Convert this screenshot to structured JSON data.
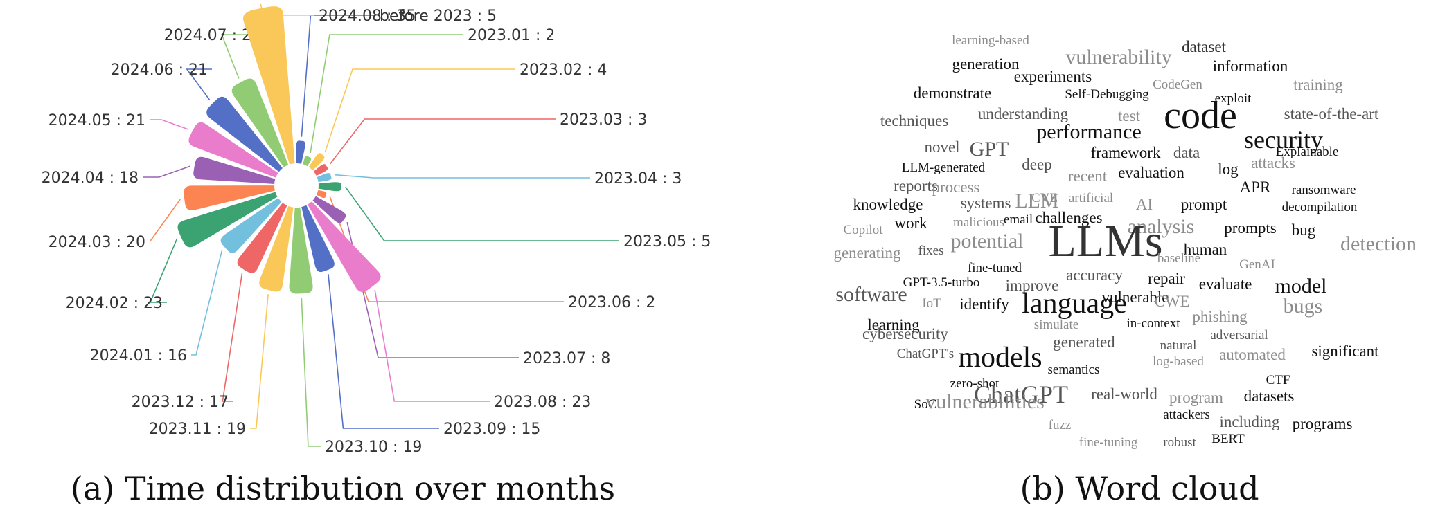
{
  "captions": {
    "a": "(a) Time distribution over months",
    "b": "(b) Word cloud"
  },
  "chart_data": [
    {
      "type": "bar",
      "variant": "nightingale-rose",
      "title": "",
      "label_separator": " : ",
      "categories": [
        "before 2023",
        "2023.01",
        "2023.02",
        "2023.03",
        "2023.04",
        "2023.05",
        "2023.06",
        "2023.07",
        "2023.08",
        "2023.09",
        "2023.10",
        "2023.11",
        "2023.12",
        "2024.01",
        "2024.02",
        "2024.03",
        "2024.04",
        "2024.05",
        "2024.06",
        "2024.07",
        "2024.08"
      ],
      "values": [
        5,
        2,
        4,
        3,
        3,
        5,
        2,
        8,
        23,
        15,
        19,
        19,
        17,
        16,
        23,
        20,
        18,
        21,
        21,
        21,
        35
      ],
      "colors": [
        "#5470c6",
        "#91cc75",
        "#fac858",
        "#ee6666",
        "#73c0de",
        "#3ba272",
        "#fc8452",
        "#9a60b4",
        "#ea7ccc",
        "#5470c6",
        "#91cc75",
        "#fac858",
        "#ee6666",
        "#73c0de",
        "#3ba272",
        "#fc8452",
        "#9a60b4",
        "#ea7ccc",
        "#5470c6",
        "#91cc75",
        "#fac858"
      ]
    },
    {
      "type": "word_cloud",
      "words": [
        {
          "text": "learning-based",
          "weight": 1,
          "color": "#8c8c8c"
        },
        {
          "text": "vulnerability",
          "weight": 3,
          "color": "#8c8c8c"
        },
        {
          "text": "dataset",
          "weight": 2,
          "color": "#333333"
        },
        {
          "text": "generation",
          "weight": 2,
          "color": "#111111"
        },
        {
          "text": "experiments",
          "weight": 2,
          "color": "#111111"
        },
        {
          "text": "information",
          "weight": 2,
          "color": "#111111"
        },
        {
          "text": "demonstrate",
          "weight": 2,
          "color": "#111111"
        },
        {
          "text": "Self-Debugging",
          "weight": 1,
          "color": "#111111"
        },
        {
          "text": "CodeGen",
          "weight": 1,
          "color": "#8c8c8c"
        },
        {
          "text": "exploit",
          "weight": 1,
          "color": "#111111"
        },
        {
          "text": "training",
          "weight": 2,
          "color": "#8c8c8c"
        },
        {
          "text": "techniques",
          "weight": 2,
          "color": "#555555"
        },
        {
          "text": "understanding",
          "weight": 2,
          "color": "#555555"
        },
        {
          "text": "test",
          "weight": 2,
          "color": "#8c8c8c"
        },
        {
          "text": "code",
          "weight": 6,
          "color": "#111111"
        },
        {
          "text": "state-of-the-art",
          "weight": 2,
          "color": "#555555"
        },
        {
          "text": "performance",
          "weight": 3,
          "color": "#111111"
        },
        {
          "text": "security",
          "weight": 4,
          "color": "#111111"
        },
        {
          "text": "novel",
          "weight": 2,
          "color": "#555555"
        },
        {
          "text": "GPT",
          "weight": 3,
          "color": "#555555"
        },
        {
          "text": "framework",
          "weight": 2,
          "color": "#111111"
        },
        {
          "text": "data",
          "weight": 2,
          "color": "#555555"
        },
        {
          "text": "Explainable",
          "weight": 1,
          "color": "#111111"
        },
        {
          "text": "LLM-generated",
          "weight": 1,
          "color": "#111111"
        },
        {
          "text": "deep",
          "weight": 2,
          "color": "#555555"
        },
        {
          "text": "recent",
          "weight": 2,
          "color": "#8c8c8c"
        },
        {
          "text": "evaluation",
          "weight": 2,
          "color": "#111111"
        },
        {
          "text": "log",
          "weight": 2,
          "color": "#111111"
        },
        {
          "text": "attacks",
          "weight": 2,
          "color": "#8c8c8c"
        },
        {
          "text": "reports",
          "weight": 2,
          "color": "#555555"
        },
        {
          "text": "process",
          "weight": 2,
          "color": "#8c8c8c"
        },
        {
          "text": "CVE",
          "weight": 1,
          "color": "#8c8c8c"
        },
        {
          "text": "artificial",
          "weight": 1,
          "color": "#8c8c8c"
        },
        {
          "text": "APR",
          "weight": 2,
          "color": "#111111"
        },
        {
          "text": "ransomware",
          "weight": 1,
          "color": "#111111"
        },
        {
          "text": "knowledge",
          "weight": 2,
          "color": "#111111"
        },
        {
          "text": "systems",
          "weight": 2,
          "color": "#555555"
        },
        {
          "text": "LLM",
          "weight": 3,
          "color": "#8c8c8c"
        },
        {
          "text": "AI",
          "weight": 2,
          "color": "#8c8c8c"
        },
        {
          "text": "prompt",
          "weight": 2,
          "color": "#111111"
        },
        {
          "text": "decompilation",
          "weight": 1,
          "color": "#111111"
        },
        {
          "text": "Copilot",
          "weight": 1,
          "color": "#8c8c8c"
        },
        {
          "text": "work",
          "weight": 2,
          "color": "#111111"
        },
        {
          "text": "malicious",
          "weight": 1,
          "color": "#8c8c8c"
        },
        {
          "text": "email",
          "weight": 1,
          "color": "#111111"
        },
        {
          "text": "challenges",
          "weight": 2,
          "color": "#111111"
        },
        {
          "text": "analysis",
          "weight": 3,
          "color": "#8c8c8c"
        },
        {
          "text": "prompts",
          "weight": 2,
          "color": "#111111"
        },
        {
          "text": "bug",
          "weight": 2,
          "color": "#111111"
        },
        {
          "text": "generating",
          "weight": 2,
          "color": "#8c8c8c"
        },
        {
          "text": "fixes",
          "weight": 1,
          "color": "#555555"
        },
        {
          "text": "potential",
          "weight": 3,
          "color": "#8c8c8c"
        },
        {
          "text": "LLMs",
          "weight": 7,
          "color": "#333333"
        },
        {
          "text": "human",
          "weight": 2,
          "color": "#111111"
        },
        {
          "text": "detection",
          "weight": 3,
          "color": "#8c8c8c"
        },
        {
          "text": "fine-tuned",
          "weight": 1,
          "color": "#111111"
        },
        {
          "text": "baseline",
          "weight": 1,
          "color": "#8c8c8c"
        },
        {
          "text": "GenAI",
          "weight": 1,
          "color": "#8c8c8c"
        },
        {
          "text": "GPT-3.5-turbo",
          "weight": 1,
          "color": "#111111"
        },
        {
          "text": "improve",
          "weight": 2,
          "color": "#555555"
        },
        {
          "text": "accuracy",
          "weight": 2,
          "color": "#555555"
        },
        {
          "text": "repair",
          "weight": 2,
          "color": "#111111"
        },
        {
          "text": "evaluate",
          "weight": 2,
          "color": "#111111"
        },
        {
          "text": "model",
          "weight": 3,
          "color": "#111111"
        },
        {
          "text": "software",
          "weight": 3,
          "color": "#555555"
        },
        {
          "text": "IoT",
          "weight": 1,
          "color": "#8c8c8c"
        },
        {
          "text": "identify",
          "weight": 2,
          "color": "#111111"
        },
        {
          "text": "language",
          "weight": 5,
          "color": "#111111"
        },
        {
          "text": "vulnerable",
          "weight": 2,
          "color": "#111111"
        },
        {
          "text": "CWE",
          "weight": 2,
          "color": "#8c8c8c"
        },
        {
          "text": "bugs",
          "weight": 3,
          "color": "#8c8c8c"
        },
        {
          "text": "learning",
          "weight": 2,
          "color": "#111111"
        },
        {
          "text": "simulate",
          "weight": 1,
          "color": "#8c8c8c"
        },
        {
          "text": "in-context",
          "weight": 1,
          "color": "#111111"
        },
        {
          "text": "phishing",
          "weight": 2,
          "color": "#8c8c8c"
        },
        {
          "text": "cybersecurity",
          "weight": 2,
          "color": "#555555"
        },
        {
          "text": "generated",
          "weight": 2,
          "color": "#555555"
        },
        {
          "text": "adversarial",
          "weight": 1,
          "color": "#555555"
        },
        {
          "text": "ChatGPT's",
          "weight": 1,
          "color": "#555555"
        },
        {
          "text": "natural",
          "weight": 1,
          "color": "#555555"
        },
        {
          "text": "significant",
          "weight": 2,
          "color": "#111111"
        },
        {
          "text": "models",
          "weight": 5,
          "color": "#111111"
        },
        {
          "text": "semantics",
          "weight": 1,
          "color": "#111111"
        },
        {
          "text": "log-based",
          "weight": 1,
          "color": "#8c8c8c"
        },
        {
          "text": "automated",
          "weight": 2,
          "color": "#8c8c8c"
        },
        {
          "text": "zero-shot",
          "weight": 1,
          "color": "#111111"
        },
        {
          "text": "CTF",
          "weight": 1,
          "color": "#111111"
        },
        {
          "text": "ChatGPT",
          "weight": 4,
          "color": "#555555"
        },
        {
          "text": "real-world",
          "weight": 2,
          "color": "#555555"
        },
        {
          "text": "program",
          "weight": 2,
          "color": "#8c8c8c"
        },
        {
          "text": "datasets",
          "weight": 2,
          "color": "#111111"
        },
        {
          "text": "SoC",
          "weight": 1,
          "color": "#111111"
        },
        {
          "text": "vulnerabilities",
          "weight": 3,
          "color": "#8c8c8c"
        },
        {
          "text": "fuzz",
          "weight": 1,
          "color": "#8c8c8c"
        },
        {
          "text": "attackers",
          "weight": 1,
          "color": "#111111"
        },
        {
          "text": "including",
          "weight": 2,
          "color": "#555555"
        },
        {
          "text": "programs",
          "weight": 2,
          "color": "#111111"
        },
        {
          "text": "fine-tuning",
          "weight": 1,
          "color": "#8c8c8c"
        },
        {
          "text": "robust",
          "weight": 1,
          "color": "#555555"
        },
        {
          "text": "BERT",
          "weight": 1,
          "color": "#111111"
        }
      ]
    }
  ]
}
